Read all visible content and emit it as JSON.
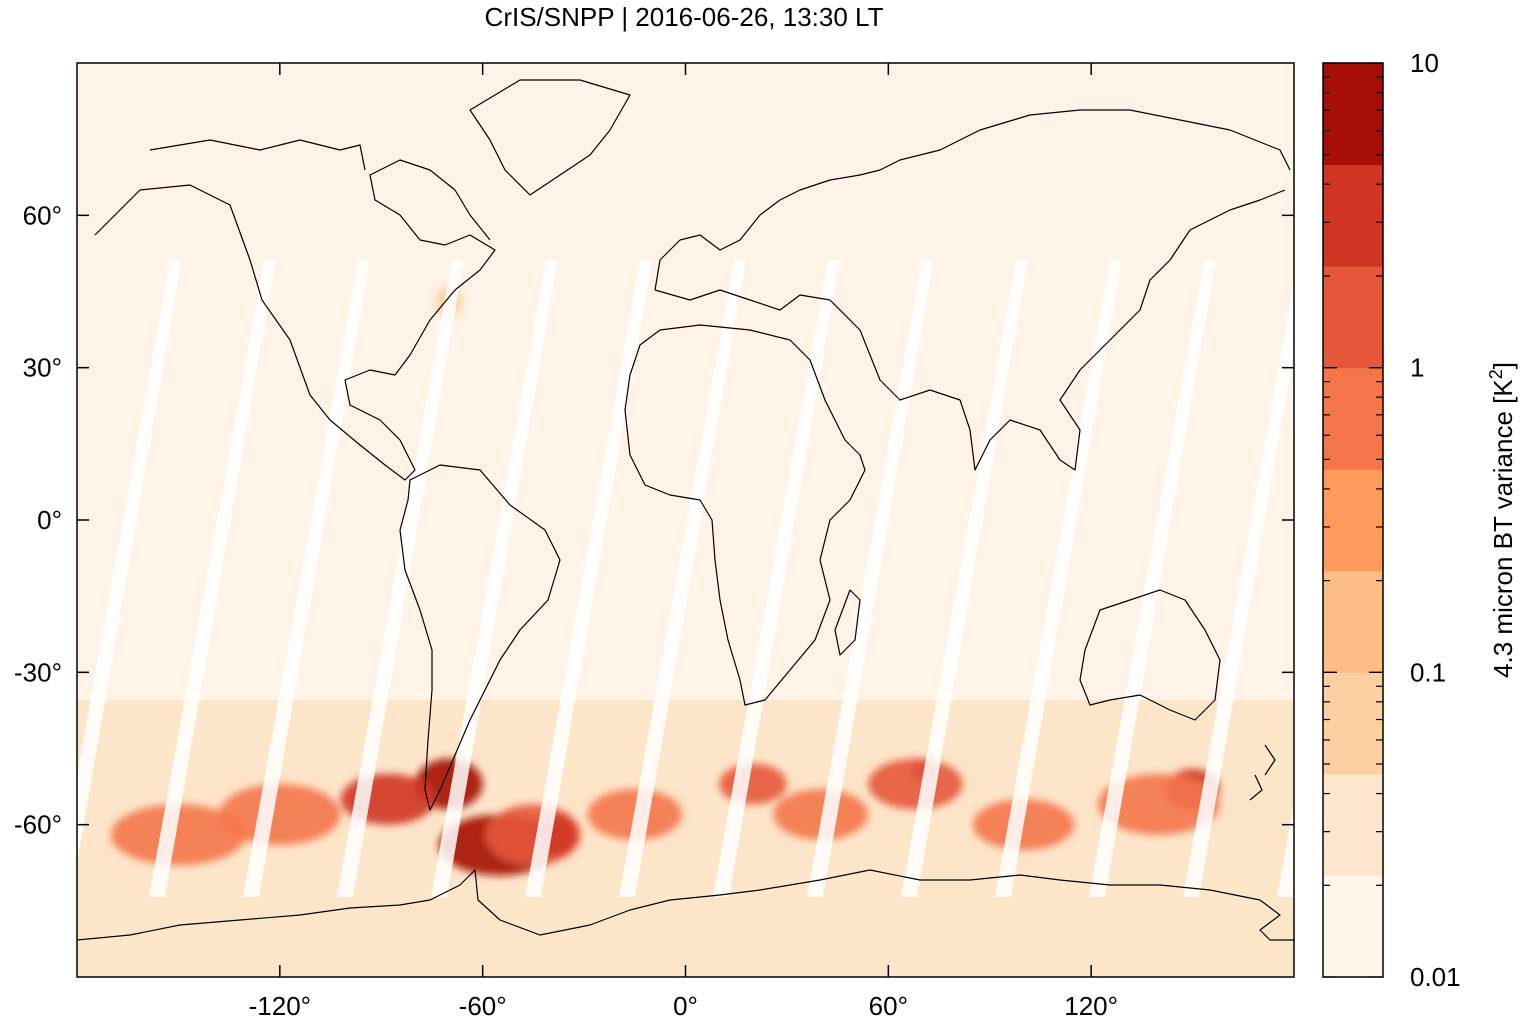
{
  "title": "CrIS/SNPP | 2016-06-26, 13:30 LT",
  "map": {
    "projection": "equirectangular",
    "lon_range": [
      -180,
      180
    ],
    "lat_range": [
      -90,
      90
    ],
    "frame": "box"
  },
  "x_ticks": [
    {
      "value": -120,
      "label": "-120°"
    },
    {
      "value": -60,
      "label": "-60°"
    },
    {
      "value": 0,
      "label": "0°"
    },
    {
      "value": 60,
      "label": "60°"
    },
    {
      "value": 120,
      "label": "120°"
    }
  ],
  "y_ticks": [
    {
      "value": 60,
      "label": "60°"
    },
    {
      "value": 30,
      "label": "30°"
    },
    {
      "value": 0,
      "label": "0°"
    },
    {
      "value": -30,
      "label": "-30°"
    },
    {
      "value": -60,
      "label": "-60°"
    }
  ],
  "colorbar": {
    "label": "4.3 micron BT variance [K",
    "label_sup": "2",
    "label_end": "]",
    "scale": "log",
    "range": [
      0.01,
      10
    ],
    "tick_labels": [
      {
        "value": 0.01,
        "label": "0.01"
      },
      {
        "value": 0.1,
        "label": "0.1"
      },
      {
        "value": 1,
        "label": "1"
      },
      {
        "value": 10,
        "label": "10"
      }
    ],
    "colors": [
      "#fff5eb",
      "#fee6ce",
      "#fdd0a2",
      "#fdbe85",
      "#fd9a5c",
      "#f4754a",
      "#e6573a",
      "#d03523",
      "#a50f06"
    ]
  },
  "background_color": "#fef3e6",
  "gap_color": "#ffffff",
  "hotspots": [
    {
      "lon": -70,
      "lat": -52,
      "value": 6,
      "rx": 10,
      "ry": 5
    },
    {
      "lon": -55,
      "lat": -64,
      "value": 5,
      "rx": 18,
      "ry": 6
    },
    {
      "lon": -88,
      "lat": -55,
      "value": 2.5,
      "rx": 14,
      "ry": 5
    },
    {
      "lon": -45,
      "lat": -62,
      "value": 1.5,
      "rx": 14,
      "ry": 6
    },
    {
      "lon": -38,
      "lat": -62,
      "value": 3,
      "rx": 6,
      "ry": 4
    },
    {
      "lon": 70,
      "lat": -49,
      "value": 8,
      "rx": 3,
      "ry": 2
    },
    {
      "lon": 68,
      "lat": -52,
      "value": 1,
      "rx": 14,
      "ry": 5
    },
    {
      "lon": 150,
      "lat": -53,
      "value": 3,
      "rx": 8,
      "ry": 4
    },
    {
      "lon": 140,
      "lat": -56,
      "value": 0.8,
      "rx": 18,
      "ry": 6
    },
    {
      "lon": 20,
      "lat": -52,
      "value": 1.2,
      "rx": 10,
      "ry": 4
    },
    {
      "lon": 100,
      "lat": -60,
      "value": 0.9,
      "rx": 15,
      "ry": 5
    },
    {
      "lon": -150,
      "lat": -62,
      "value": 0.6,
      "rx": 20,
      "ry": 6
    },
    {
      "lon": -120,
      "lat": -58,
      "value": 0.6,
      "rx": 18,
      "ry": 6
    },
    {
      "lon": -15,
      "lat": -58,
      "value": 0.5,
      "rx": 14,
      "ry": 5
    },
    {
      "lon": 40,
      "lat": -58,
      "value": 0.5,
      "rx": 14,
      "ry": 5
    },
    {
      "lon": -70,
      "lat": 43,
      "value": 0.05,
      "rx": 4,
      "ry": 3
    }
  ]
}
